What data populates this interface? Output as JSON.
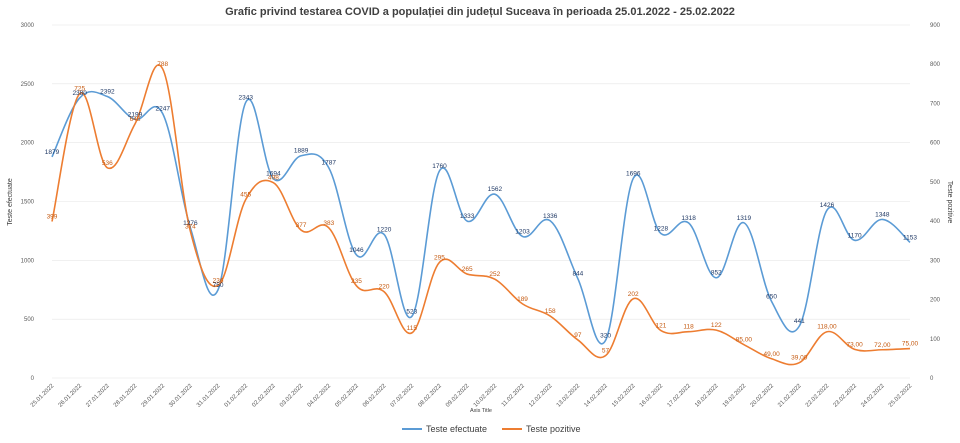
{
  "chart_data": {
    "type": "line",
    "title": "Grafic privind testarea COVID a populației din județul Suceava în perioada 25.01.2022  - 25.02.2022",
    "xlabel": "Axis Title",
    "ylabel": "Teste efectuate",
    "y2label": "Teste pozitive",
    "ylim": [
      0,
      3000
    ],
    "y2lim": [
      0,
      900
    ],
    "yticks": [
      "0",
      "500",
      "1000",
      "1500",
      "2000",
      "2500",
      "3000"
    ],
    "y2ticks": [
      "0",
      "100",
      "200",
      "300",
      "400",
      "500",
      "600",
      "700",
      "800",
      "900"
    ],
    "grid": true,
    "legend_position": "bottom",
    "categories": [
      "25.01.2022",
      "26.01.2022",
      "27.01.2022",
      "28.01.2022",
      "29.01.2022",
      "30.01.2022",
      "31.01.2022",
      "01.02.2022",
      "02.02.2022",
      "03.02.2022",
      "04.02.2022",
      "05.02.2022",
      "06.02.2022",
      "07.02.2022",
      "08.02.2022",
      "09.02.2022",
      "10.02.2022",
      "11.02.2022",
      "12.02.2022",
      "13.02.2022",
      "14.02.2022",
      "15.02.2022",
      "16.02.2022",
      "17.02.2022",
      "18.02.2022",
      "19.02.2022",
      "20.02.2022",
      "21.02.2022",
      "22.02.2022",
      "23.02.2022",
      "24.02.2022",
      "25.02.2022"
    ],
    "series": [
      {
        "name": "Teste efectuate",
        "axis": "left",
        "color": "#5b9bd5",
        "values": [
          1879,
          2380,
          2392,
          2199,
          2247,
          1276,
          750,
          2343,
          1694,
          1889,
          1787,
          1046,
          1220,
          523,
          1760,
          1333,
          1562,
          1203,
          1336,
          844,
          320,
          1696,
          1228,
          1318,
          852,
          1319,
          650,
          441,
          1426,
          1170,
          1348,
          1153
        ],
        "labels": [
          "1879",
          "2380",
          "2392",
          "2199",
          "2247",
          "1276",
          "750",
          "2343",
          "1694",
          "1889",
          "1787",
          "1046",
          "1220",
          "523",
          "1760",
          "1333",
          "1562",
          "1203",
          "1336",
          "844",
          "320",
          "1696",
          "1228",
          "1318",
          "852",
          "1319",
          "650",
          "441",
          "1426",
          "1170",
          "1348",
          "1153"
        ]
      },
      {
        "name": "Teste pozitive",
        "axis": "right",
        "color": "#ed7d31",
        "values": [
          399,
          725,
          536,
          648,
          788,
          374,
          236,
          455,
          498,
          377,
          383,
          235,
          220,
          115,
          295,
          265,
          252,
          189,
          158,
          97,
          57,
          202,
          121,
          118,
          122,
          85,
          49,
          39,
          118,
          73,
          72,
          75
        ],
        "labels": [
          "399",
          "725",
          "536",
          "648",
          "788",
          "374",
          "236",
          "455",
          "498",
          "377",
          "383",
          "235",
          "220",
          "115",
          "295",
          "265",
          "252",
          "189",
          "158",
          "97",
          "57",
          "202",
          "121",
          "118",
          "122",
          "85,00",
          "49,00",
          "39,00",
          "118,00",
          "73,00",
          "72,00",
          "75,00"
        ]
      }
    ]
  }
}
